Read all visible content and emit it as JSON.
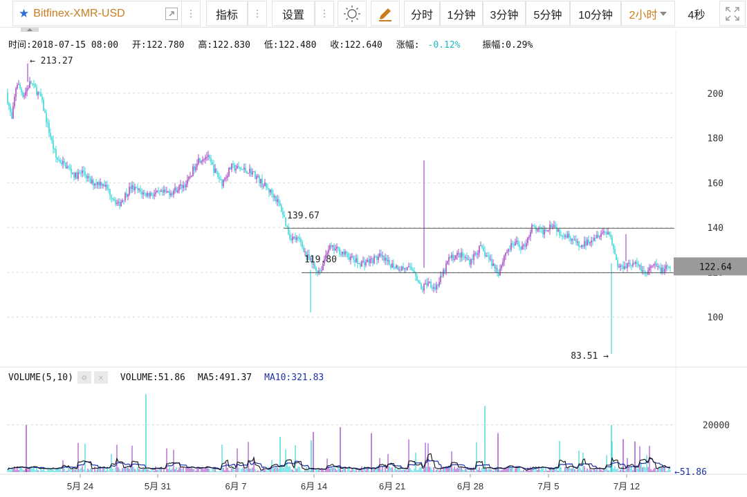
{
  "toolbar": {
    "symbol": "Bitfinex-XMR-USD",
    "indicators_label": "指标",
    "settings_label": "设置",
    "timeframes": [
      "分时",
      "1分钟",
      "3分钟",
      "5分钟",
      "10分钟"
    ],
    "active_timeframe": "2小时",
    "countdown": "4秒",
    "icons": [
      "star-icon",
      "popout-icon",
      "more-vertical-icon",
      "sun-icon",
      "pencil-icon",
      "fullscreen-icon"
    ]
  },
  "info": {
    "time": "时间:2018-07-15 08:00",
    "open": "开:122.780",
    "high": "高:122.830",
    "low": "低:122.480",
    "close": "收:122.640",
    "change": "-0.12%",
    "change_label": "涨幅:",
    "amplitude": "振幅:0.29%"
  },
  "volume_legend": {
    "title": "VOLUME(5,10)",
    "volume": "VOLUME:51.86",
    "ma5": "MA5:491.37",
    "ma10": "MA10:321.83"
  },
  "colors": {
    "up": "#a44fc4",
    "down": "#3fd6d8",
    "ma5": "#111111",
    "ma10": "#1a2fa8",
    "accent": "#c77d1e",
    "current_price_bg": "#9a9a9a"
  },
  "chart_data": {
    "type": "candlestick",
    "price_axis": {
      "ticks": [
        100,
        120,
        140,
        160,
        180,
        200
      ],
      "range": [
        78,
        220
      ]
    },
    "volume_axis": {
      "ticks": [
        20000
      ],
      "range": [
        0,
        36000
      ]
    },
    "x_ticks": [
      "5月 24",
      "5月 31",
      "6月 7",
      "6月 14",
      "6月 21",
      "6月 28",
      "7月 5",
      "7月 12"
    ],
    "annotations": {
      "max_label": "← 213.27",
      "max_value": 213.27,
      "min_label": "83.51 →",
      "min_value": 83.51,
      "line_high_label": "139.67",
      "line_high_value": 139.67,
      "line_low_label": "119.80",
      "line_low_value": 119.8,
      "current_price": "122.64",
      "last_volume": "←51.86"
    },
    "price_anchors": [
      [
        0,
        200
      ],
      [
        8,
        188
      ],
      [
        15,
        205
      ],
      [
        25,
        199
      ],
      [
        35,
        205
      ],
      [
        50,
        198
      ],
      [
        62,
        183
      ],
      [
        72,
        171
      ],
      [
        85,
        168
      ],
      [
        100,
        163
      ],
      [
        112,
        165
      ],
      [
        122,
        160
      ],
      [
        140,
        160
      ],
      [
        162,
        150
      ],
      [
        180,
        158
      ],
      [
        200,
        155
      ],
      [
        220,
        155
      ],
      [
        240,
        156
      ],
      [
        262,
        160
      ],
      [
        276,
        170
      ],
      [
        290,
        172
      ],
      [
        300,
        166
      ],
      [
        312,
        160
      ],
      [
        325,
        167
      ],
      [
        340,
        166
      ],
      [
        355,
        165
      ],
      [
        372,
        159
      ],
      [
        388,
        154
      ],
      [
        398,
        148
      ],
      [
        404,
        142
      ],
      [
        410,
        136
      ],
      [
        425,
        134
      ],
      [
        435,
        127
      ],
      [
        448,
        121
      ],
      [
        455,
        121
      ],
      [
        465,
        131
      ],
      [
        480,
        130
      ],
      [
        495,
        127
      ],
      [
        510,
        124
      ],
      [
        525,
        125
      ],
      [
        540,
        127
      ],
      [
        552,
        124
      ],
      [
        570,
        122
      ],
      [
        590,
        121
      ],
      [
        600,
        112
      ],
      [
        610,
        116
      ],
      [
        620,
        113
      ],
      [
        630,
        118
      ],
      [
        640,
        126
      ],
      [
        655,
        128
      ],
      [
        670,
        125
      ],
      [
        685,
        131
      ],
      [
        700,
        125
      ],
      [
        712,
        120
      ],
      [
        722,
        129
      ],
      [
        735,
        133
      ],
      [
        748,
        131
      ],
      [
        760,
        140
      ],
      [
        775,
        138
      ],
      [
        790,
        142
      ],
      [
        800,
        138
      ],
      [
        815,
        136
      ],
      [
        830,
        131
      ],
      [
        845,
        135
      ],
      [
        860,
        138
      ],
      [
        872,
        138
      ],
      [
        880,
        128
      ],
      [
        885,
        122
      ],
      [
        900,
        124
      ],
      [
        915,
        123
      ],
      [
        925,
        119
      ],
      [
        935,
        123
      ],
      [
        948,
        121
      ],
      [
        960,
        122
      ]
    ]
  }
}
